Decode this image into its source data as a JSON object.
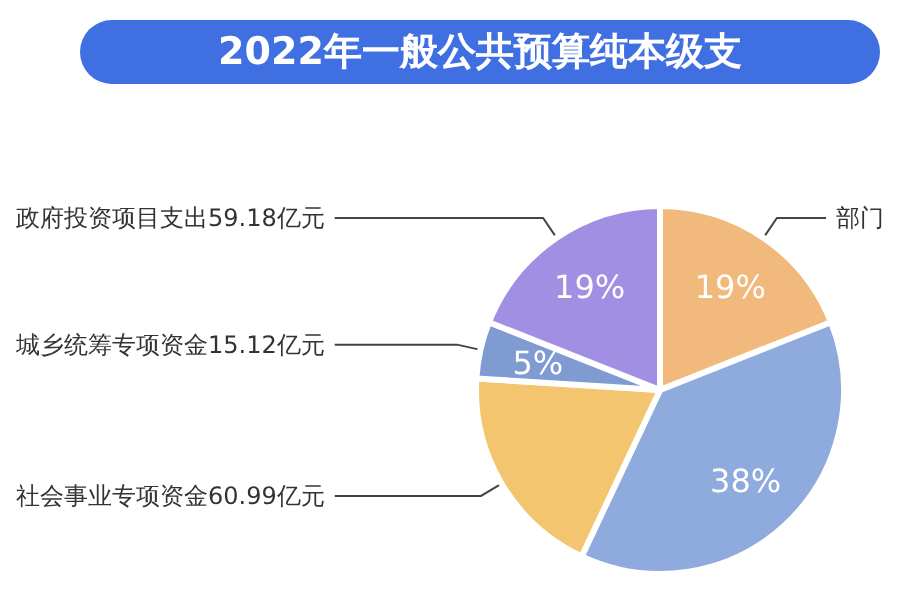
{
  "chart_data": {
    "type": "pie",
    "title": "2022年一般公共预算纯本级支",
    "categories": [
      "部门",
      null,
      "社会事业专项资金60.99亿元",
      "城乡统筹专项资金15.12亿元",
      "政府投资项目支出59.18亿元"
    ],
    "values": [
      19,
      38,
      19,
      5,
      19
    ],
    "value_labels": [
      "19%",
      "38%",
      null,
      "5%",
      "19%"
    ],
    "colors": [
      "#f1b97c",
      "#8faadc",
      "#f3c56e",
      "#7f9bd2",
      "#a08fe2"
    ],
    "legend": false
  }
}
